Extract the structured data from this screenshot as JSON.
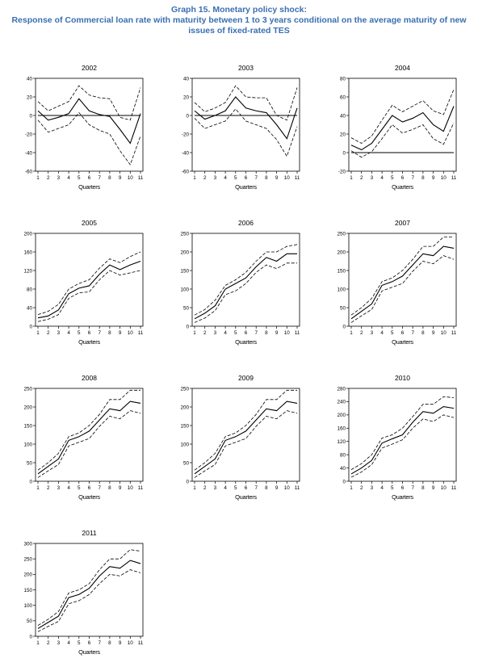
{
  "header": {
    "title": "Graph 15.  Monetary policy shock:",
    "subtitle": "Response of Commercial loan rate with maturity between 1 to 3 years conditional on the average maturity of new issues of fixed-rated TES"
  },
  "chart_data": [
    {
      "type": "line",
      "title": "2002",
      "xlabel": "Quarters",
      "x": [
        1,
        2,
        3,
        4,
        5,
        6,
        7,
        8,
        9,
        10,
        11
      ],
      "ylim": [
        -60,
        40
      ],
      "yticks": [
        -60,
        -40,
        -20,
        0,
        20,
        40
      ],
      "zero_line": true,
      "series": [
        {
          "style": "solid",
          "values": [
            5,
            -5,
            -2,
            2,
            18,
            5,
            1,
            -1,
            -15,
            -30,
            2
          ]
        },
        {
          "style": "dashed",
          "values": [
            15,
            5,
            10,
            15,
            32,
            22,
            19,
            18,
            -2,
            -5,
            30
          ]
        },
        {
          "style": "dashed",
          "values": [
            -5,
            -18,
            -14,
            -10,
            3,
            -10,
            -16,
            -20,
            -38,
            -53,
            -22
          ]
        }
      ]
    },
    {
      "type": "line",
      "title": "2003",
      "xlabel": "Quarters",
      "x": [
        1,
        2,
        3,
        4,
        5,
        6,
        7,
        8,
        9,
        10,
        11
      ],
      "ylim": [
        -60,
        40
      ],
      "yticks": [
        -60,
        -40,
        -20,
        0,
        20,
        40
      ],
      "zero_line": true,
      "series": [
        {
          "style": "solid",
          "values": [
            5,
            -4,
            0,
            5,
            20,
            8,
            5,
            3,
            -10,
            -25,
            8
          ]
        },
        {
          "style": "dashed",
          "values": [
            14,
            4,
            8,
            14,
            32,
            20,
            19,
            19,
            0,
            -5,
            30
          ]
        },
        {
          "style": "dashed",
          "values": [
            -3,
            -14,
            -10,
            -6,
            7,
            -6,
            -10,
            -14,
            -26,
            -44,
            -12
          ]
        }
      ]
    },
    {
      "type": "line",
      "title": "2004",
      "xlabel": "Quarters",
      "x": [
        1,
        2,
        3,
        4,
        5,
        6,
        7,
        8,
        9,
        10,
        11
      ],
      "ylim": [
        -20,
        80
      ],
      "yticks": [
        -20,
        0,
        20,
        40,
        60,
        80
      ],
      "zero_line": true,
      "series": [
        {
          "style": "solid",
          "values": [
            8,
            3,
            10,
            25,
            40,
            33,
            37,
            43,
            30,
            23,
            50
          ]
        },
        {
          "style": "dashed",
          "values": [
            16,
            10,
            18,
            35,
            51,
            44,
            50,
            56,
            45,
            41,
            68
          ]
        },
        {
          "style": "dashed",
          "values": [
            2,
            -5,
            1,
            15,
            30,
            21,
            25,
            30,
            15,
            9,
            32
          ]
        }
      ]
    },
    {
      "type": "line",
      "title": "2005",
      "xlabel": "Quarters",
      "x": [
        1,
        2,
        3,
        4,
        5,
        6,
        7,
        8,
        9,
        10,
        11
      ],
      "ylim": [
        0,
        200
      ],
      "yticks": [
        0,
        40,
        80,
        120,
        160,
        200
      ],
      "zero_line": false,
      "series": [
        {
          "style": "solid",
          "values": [
            18,
            22,
            35,
            70,
            82,
            87,
            112,
            132,
            122,
            132,
            140
          ]
        },
        {
          "style": "dashed",
          "values": [
            25,
            32,
            47,
            80,
            92,
            100,
            125,
            145,
            137,
            150,
            160
          ]
        },
        {
          "style": "dashed",
          "values": [
            10,
            15,
            25,
            60,
            72,
            74,
            100,
            120,
            110,
            115,
            120
          ]
        }
      ]
    },
    {
      "type": "line",
      "title": "2006",
      "xlabel": "Quarters",
      "x": [
        1,
        2,
        3,
        4,
        5,
        6,
        7,
        8,
        9,
        10,
        11
      ],
      "ylim": [
        0,
        250
      ],
      "yticks": [
        0,
        50,
        100,
        150,
        200,
        250
      ],
      "zero_line": false,
      "series": [
        {
          "style": "solid",
          "values": [
            20,
            35,
            55,
            100,
            115,
            130,
            160,
            185,
            175,
            195,
            195
          ]
        },
        {
          "style": "dashed",
          "values": [
            30,
            45,
            70,
            110,
            125,
            145,
            175,
            200,
            200,
            215,
            220
          ]
        },
        {
          "style": "dashed",
          "values": [
            10,
            22,
            42,
            85,
            95,
            115,
            145,
            165,
            155,
            170,
            170
          ]
        }
      ]
    },
    {
      "type": "line",
      "title": "2007",
      "xlabel": "Quarters",
      "x": [
        1,
        2,
        3,
        4,
        5,
        6,
        7,
        8,
        9,
        10,
        11
      ],
      "ylim": [
        0,
        250
      ],
      "yticks": [
        0,
        50,
        100,
        150,
        200,
        250
      ],
      "zero_line": false,
      "series": [
        {
          "style": "solid",
          "values": [
            20,
            40,
            60,
            110,
            120,
            135,
            165,
            195,
            190,
            215,
            210
          ]
        },
        {
          "style": "dashed",
          "values": [
            30,
            50,
            75,
            120,
            130,
            150,
            180,
            215,
            215,
            240,
            240
          ]
        },
        {
          "style": "dashed",
          "values": [
            10,
            28,
            45,
            95,
            105,
            115,
            148,
            175,
            168,
            190,
            180
          ]
        }
      ]
    },
    {
      "type": "line",
      "title": "2008",
      "xlabel": "Quarters",
      "x": [
        1,
        2,
        3,
        4,
        5,
        6,
        7,
        8,
        9,
        10,
        11
      ],
      "ylim": [
        0,
        250
      ],
      "yticks": [
        0,
        50,
        100,
        150,
        200,
        250
      ],
      "zero_line": false,
      "series": [
        {
          "style": "solid",
          "values": [
            20,
            40,
            60,
            110,
            120,
            135,
            165,
            195,
            190,
            215,
            210
          ]
        },
        {
          "style": "dashed",
          "values": [
            30,
            50,
            75,
            120,
            130,
            150,
            180,
            220,
            220,
            245,
            245
          ]
        },
        {
          "style": "dashed",
          "values": [
            10,
            28,
            45,
            95,
            105,
            115,
            148,
            175,
            168,
            190,
            183
          ]
        }
      ]
    },
    {
      "type": "line",
      "title": "2009",
      "xlabel": "Quarters",
      "x": [
        1,
        2,
        3,
        4,
        5,
        6,
        7,
        8,
        9,
        10,
        11
      ],
      "ylim": [
        0,
        250
      ],
      "yticks": [
        0,
        50,
        100,
        150,
        200,
        250
      ],
      "zero_line": false,
      "series": [
        {
          "style": "solid",
          "values": [
            20,
            40,
            60,
            110,
            120,
            135,
            165,
            195,
            190,
            215,
            210
          ]
        },
        {
          "style": "dashed",
          "values": [
            30,
            50,
            75,
            120,
            130,
            150,
            180,
            220,
            220,
            245,
            245
          ]
        },
        {
          "style": "dashed",
          "values": [
            10,
            28,
            45,
            95,
            105,
            115,
            148,
            175,
            168,
            190,
            183
          ]
        }
      ]
    },
    {
      "type": "line",
      "title": "2010",
      "xlabel": "Quarters",
      "x": [
        1,
        2,
        3,
        4,
        5,
        6,
        7,
        8,
        9,
        10,
        11
      ],
      "ylim": [
        0,
        280
      ],
      "yticks": [
        0,
        40,
        80,
        120,
        160,
        200,
        240,
        280
      ],
      "zero_line": false,
      "series": [
        {
          "style": "solid",
          "values": [
            22,
            40,
            63,
            115,
            128,
            140,
            178,
            210,
            205,
            225,
            220
          ]
        },
        {
          "style": "dashed",
          "values": [
            35,
            53,
            80,
            130,
            140,
            160,
            195,
            232,
            232,
            255,
            252
          ]
        },
        {
          "style": "dashed",
          "values": [
            12,
            28,
            50,
            100,
            112,
            125,
            160,
            188,
            180,
            200,
            192
          ]
        }
      ]
    },
    {
      "type": "line",
      "title": "2011",
      "xlabel": "Quarters",
      "x": [
        1,
        2,
        3,
        4,
        5,
        6,
        7,
        8,
        9,
        10,
        11
      ],
      "ylim": [
        0,
        300
      ],
      "yticks": [
        0,
        50,
        100,
        150,
        200,
        250,
        300
      ],
      "zero_line": false,
      "series": [
        {
          "style": "solid",
          "values": [
            25,
            45,
            65,
            125,
            135,
            155,
            195,
            225,
            220,
            245,
            235
          ]
        },
        {
          "style": "dashed",
          "values": [
            35,
            55,
            80,
            140,
            150,
            170,
            215,
            250,
            250,
            280,
            275
          ]
        },
        {
          "style": "dashed",
          "values": [
            15,
            32,
            48,
            105,
            115,
            135,
            170,
            200,
            195,
            215,
            205
          ]
        }
      ]
    }
  ]
}
